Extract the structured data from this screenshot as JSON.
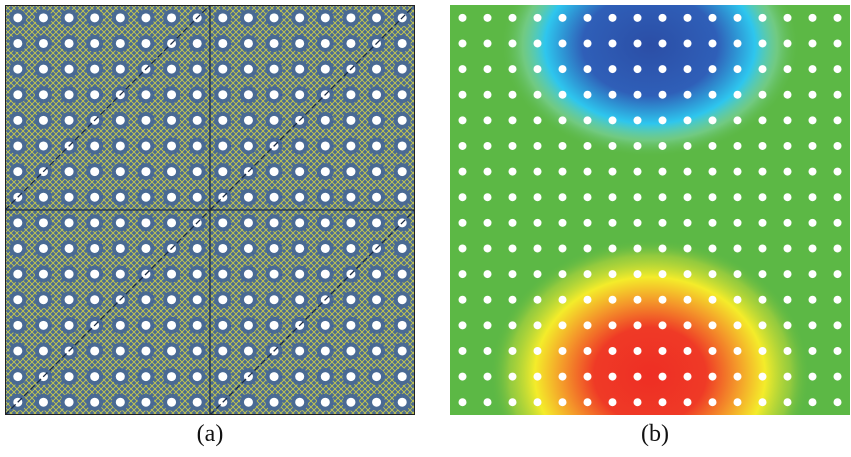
{
  "figure": {
    "panels": [
      {
        "caption": "(a)",
        "grid_rows": 16,
        "grid_cols": 16,
        "background_color": "#4a6a93",
        "mesh_color": "#c7c94a",
        "hole_color": "#ffffff",
        "partition_line_color": "#1a2a44"
      },
      {
        "caption": "(b)",
        "grid_rows": 16,
        "grid_cols": 16,
        "hole_color": "#ffffff",
        "field_colors": {
          "base": "#5cb845",
          "low": "#2d4ea8",
          "mid_low": "#2ec6ee",
          "high": "#ee2e24",
          "mid_high": "#f4ec2a"
        }
      }
    ]
  }
}
